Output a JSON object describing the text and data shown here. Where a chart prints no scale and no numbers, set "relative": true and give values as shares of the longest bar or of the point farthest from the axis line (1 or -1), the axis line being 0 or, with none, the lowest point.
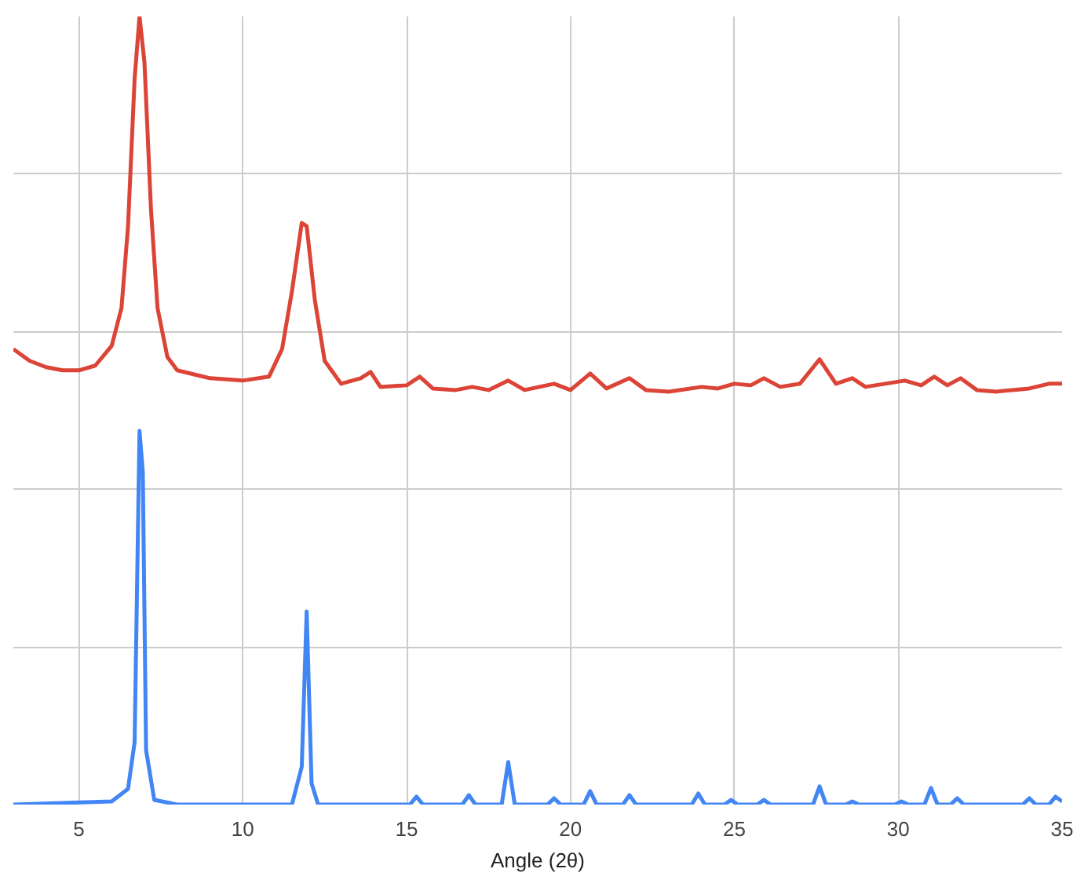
{
  "chart_data": {
    "type": "line",
    "xlabel": "Angle (2θ)",
    "relative": true,
    "xlim": [
      3,
      35
    ],
    "xticks": [
      5,
      10,
      15,
      20,
      25,
      30,
      35
    ],
    "grid": true,
    "tick_labels": "x",
    "marker": "none",
    "line_style": "solid",
    "series": [
      {
        "color": "#db4437",
        "x": [
          3,
          3.5,
          4,
          4.5,
          5,
          5.5,
          6,
          6.3,
          6.5,
          6.7,
          6.85,
          7.0,
          7.2,
          7.4,
          7.7,
          8,
          9,
          10,
          10.8,
          11.2,
          11.5,
          11.8,
          11.95,
          12.2,
          12.5,
          13,
          13.6,
          13.9,
          14.2,
          15,
          15.4,
          15.8,
          16.5,
          17,
          17.5,
          18.1,
          18.6,
          19.5,
          20,
          20.6,
          21.1,
          21.8,
          22.3,
          23,
          24,
          24.5,
          25,
          25.5,
          25.9,
          26.4,
          27,
          27.6,
          28.1,
          28.6,
          29,
          30.2,
          30.7,
          31.1,
          31.5,
          31.9,
          32.4,
          33,
          34,
          34.6,
          35
        ],
        "values": [
          0.578,
          0.563,
          0.555,
          0.551,
          0.551,
          0.557,
          0.582,
          0.63,
          0.734,
          0.921,
          1.0,
          0.942,
          0.755,
          0.63,
          0.568,
          0.551,
          0.541,
          0.538,
          0.543,
          0.578,
          0.651,
          0.738,
          0.734,
          0.64,
          0.563,
          0.534,
          0.541,
          0.549,
          0.53,
          0.532,
          0.543,
          0.528,
          0.526,
          0.53,
          0.526,
          0.538,
          0.526,
          0.534,
          0.526,
          0.547,
          0.528,
          0.541,
          0.526,
          0.524,
          0.53,
          0.528,
          0.534,
          0.532,
          0.541,
          0.53,
          0.534,
          0.565,
          0.534,
          0.541,
          0.53,
          0.538,
          0.532,
          0.543,
          0.532,
          0.541,
          0.526,
          0.524,
          0.528,
          0.534,
          0.534
        ]
      },
      {
        "color": "#4285f4",
        "x": [
          3,
          6,
          6.5,
          6.7,
          6.85,
          6.95,
          7.05,
          7.3,
          8,
          11.5,
          11.8,
          11.95,
          12.1,
          12.3,
          15.1,
          15.3,
          15.5,
          16.7,
          16.9,
          17.1,
          17.9,
          18.1,
          18.3,
          19.3,
          19.5,
          19.7,
          20.4,
          20.6,
          20.8,
          21.6,
          21.8,
          22,
          23.7,
          23.9,
          24.1,
          24.7,
          24.9,
          25.1,
          25.7,
          25.9,
          26.1,
          27.4,
          27.6,
          27.8,
          28.4,
          28.6,
          28.8,
          29.9,
          30.1,
          30.3,
          30.8,
          31,
          31.2,
          31.6,
          31.8,
          32,
          33.8,
          34,
          34.2,
          34.6,
          34.8,
          35
        ],
        "values": [
          0,
          0.004,
          0.02,
          0.079,
          0.474,
          0.422,
          0.069,
          0.006,
          0,
          0,
          0.048,
          0.245,
          0.027,
          0,
          0,
          0.01,
          0,
          0,
          0.012,
          0,
          0,
          0.054,
          0,
          0,
          0.008,
          0,
          0,
          0.017,
          0,
          0,
          0.012,
          0,
          0,
          0.014,
          0,
          0,
          0.006,
          0,
          0,
          0.006,
          0,
          0,
          0.023,
          0,
          0,
          0.004,
          0,
          0,
          0.004,
          0,
          0,
          0.021,
          0,
          0,
          0.008,
          0,
          0,
          0.008,
          0,
          0,
          0.01,
          0.004
        ]
      }
    ]
  }
}
